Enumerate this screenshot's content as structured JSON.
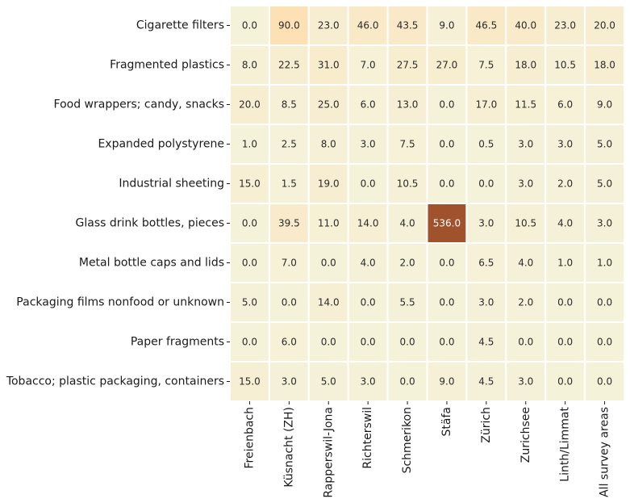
{
  "chart_data": {
    "type": "heatmap",
    "title": "",
    "xlabel": "",
    "ylabel": "",
    "rows": [
      "Cigarette filters",
      "Fragmented plastics",
      "Food wrappers; candy, snacks",
      "Expanded polystyrene",
      "Industrial sheeting",
      "Glass drink bottles, pieces",
      "Metal bottle caps and lids",
      "Packaging films nonfood or unknown",
      "Paper fragments",
      "Tobacco; plastic packaging, containers"
    ],
    "columns": [
      "Freienbach",
      "Küsnacht (ZH)",
      "Rapperswil-Jona",
      "Richterswil",
      "Schmerikon",
      "Stäfa",
      "Zürich",
      "Zurichsee",
      "Linth/Limmat",
      "All survey areas"
    ],
    "values": [
      [
        0.0,
        90.0,
        23.0,
        46.0,
        43.5,
        9.0,
        46.5,
        40.0,
        23.0,
        20.0
      ],
      [
        8.0,
        22.5,
        31.0,
        7.0,
        27.5,
        27.0,
        7.5,
        18.0,
        10.5,
        18.0
      ],
      [
        20.0,
        8.5,
        25.0,
        6.0,
        13.0,
        0.0,
        17.0,
        11.5,
        6.0,
        9.0
      ],
      [
        1.0,
        2.5,
        8.0,
        3.0,
        7.5,
        0.0,
        0.5,
        3.0,
        3.0,
        5.0
      ],
      [
        15.0,
        1.5,
        19.0,
        0.0,
        10.5,
        0.0,
        0.0,
        3.0,
        2.0,
        5.0
      ],
      [
        0.0,
        39.5,
        11.0,
        14.0,
        4.0,
        536.0,
        3.0,
        10.5,
        4.0,
        3.0
      ],
      [
        0.0,
        7.0,
        0.0,
        4.0,
        2.0,
        0.0,
        6.5,
        4.0,
        1.0,
        1.0
      ],
      [
        5.0,
        0.0,
        14.0,
        0.0,
        5.5,
        0.0,
        3.0,
        2.0,
        0.0,
        0.0
      ],
      [
        0.0,
        6.0,
        0.0,
        0.0,
        0.0,
        0.0,
        4.5,
        0.0,
        0.0,
        0.0
      ],
      [
        15.0,
        3.0,
        5.0,
        3.0,
        0.0,
        9.0,
        4.5,
        3.0,
        0.0,
        0.0
      ]
    ],
    "value_format": "0.0",
    "colorbar": false,
    "grid": false,
    "colors": {
      "low": "#f5f2da",
      "mid": "#fde0b4",
      "high": "#a0522d",
      "cell_border": "#ffffff",
      "text_dark": "#2b2b2b",
      "text_light": "#ffffff"
    }
  }
}
